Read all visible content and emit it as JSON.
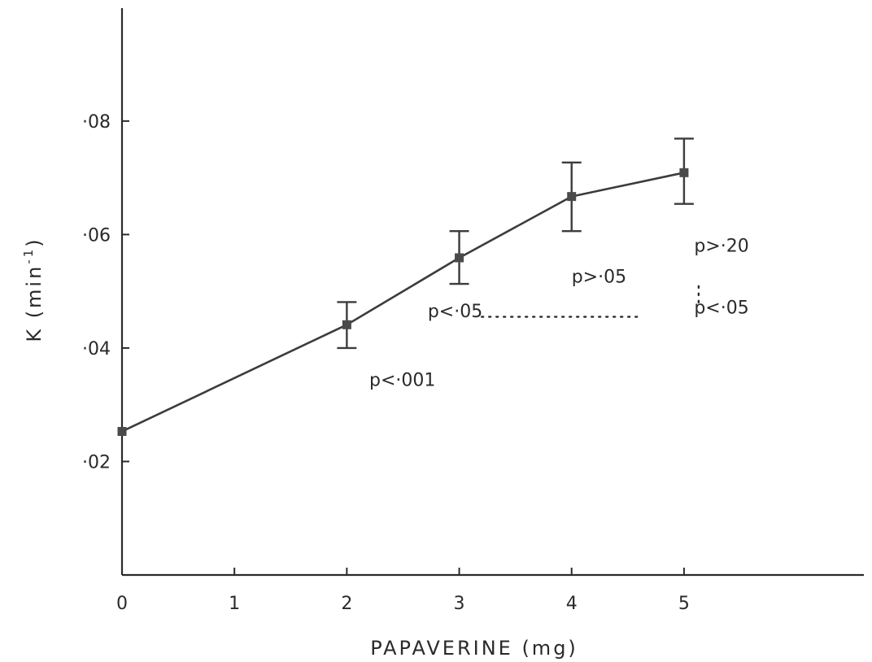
{
  "chart_data": {
    "type": "line",
    "title": "",
    "xlabel": "PAPAVERINE (mg)",
    "ylabel_main": "K (min",
    "ylabel_sup": "-1",
    "ylabel_close": ")",
    "xlim": [
      0,
      6.6
    ],
    "ylim": [
      0.0,
      0.0999
    ],
    "x_ticks": [
      0,
      1,
      2,
      3,
      4,
      5
    ],
    "x_tick_labels": [
      "0",
      "1",
      "2",
      "3",
      "4",
      "5"
    ],
    "y_ticks": [
      0.02,
      0.04,
      0.06,
      0.08
    ],
    "y_tick_labels": [
      "·02",
      "·04",
      "·06",
      "·08"
    ],
    "grid": false,
    "legend": "none",
    "series": [
      {
        "x": [
          0,
          2,
          3,
          4,
          5
        ],
        "y": [
          0.0253,
          0.0441,
          0.0559,
          0.0667,
          0.0709
        ],
        "error_low": [
          null,
          0.04,
          0.0513,
          0.0606,
          0.0654
        ],
        "error_high": [
          null,
          0.0481,
          0.0606,
          0.0727,
          0.0769
        ]
      }
    ],
    "annotations": [
      {
        "text": "p<·001",
        "x": 2.2,
        "y": 0.0333
      },
      {
        "text": "p<·05",
        "x": 2.72,
        "y": 0.0454
      },
      {
        "text": "p>·05",
        "x": 4.0,
        "y": 0.0515
      },
      {
        "text": "p>·20",
        "x": 5.09,
        "y": 0.057
      },
      {
        "text": "p<·05",
        "x": 5.09,
        "y": 0.0461
      }
    ],
    "connectors": [
      {
        "style": "dotted",
        "from": [
          3.2,
          0.0455
        ],
        "to": [
          4.63,
          0.0455
        ]
      },
      {
        "style": "dotted",
        "from": [
          5.13,
          0.0509
        ],
        "to": [
          5.13,
          0.0476
        ]
      }
    ],
    "colors": {
      "line": "#3c3c3c",
      "axis": "#2a2a2a",
      "text": "#2a2a2a"
    }
  }
}
